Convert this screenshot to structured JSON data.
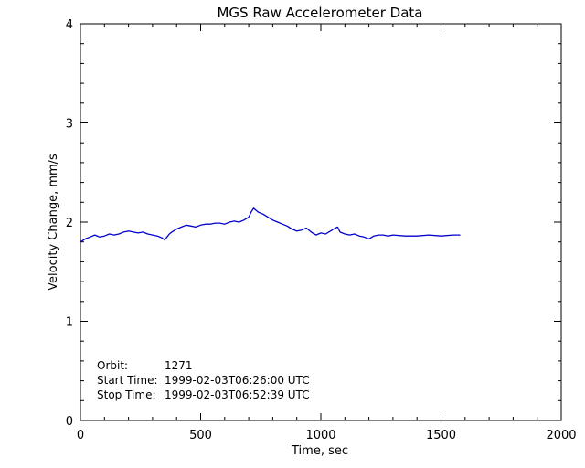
{
  "chart_data": {
    "type": "line",
    "title": "MGS Raw Accelerometer Data",
    "xlabel": "Time, sec",
    "ylabel": "Velocity Change, mm/s",
    "xlim": [
      0,
      2000
    ],
    "ylim": [
      0,
      4
    ],
    "xticks": [
      0,
      500,
      1000,
      1500,
      2000
    ],
    "xtick_labels": [
      "0",
      "500",
      "1000",
      "1500",
      "2000"
    ],
    "yticks": [
      0,
      1,
      2,
      3,
      4
    ],
    "ytick_labels": [
      "0",
      "1",
      "2",
      "3",
      "4"
    ],
    "grid": false,
    "line_color": "#0000cc",
    "series": [
      {
        "x": [
          0,
          20,
          40,
          60,
          80,
          100,
          120,
          140,
          160,
          180,
          200,
          220,
          240,
          260,
          280,
          300,
          320,
          340,
          350,
          360,
          370,
          380,
          400,
          420,
          440,
          460,
          480,
          500,
          520,
          540,
          560,
          580,
          600,
          620,
          640,
          660,
          680,
          700,
          710,
          720,
          730,
          740,
          760,
          780,
          800,
          820,
          840,
          860,
          880,
          900,
          920,
          940,
          960,
          980,
          1000,
          1020,
          1040,
          1060,
          1070,
          1080,
          1100,
          1120,
          1140,
          1160,
          1180,
          1200,
          1220,
          1240,
          1260,
          1280,
          1300,
          1350,
          1400,
          1450,
          1500,
          1550,
          1580
        ],
        "y": [
          1.8,
          1.83,
          1.85,
          1.87,
          1.85,
          1.86,
          1.88,
          1.87,
          1.88,
          1.9,
          1.91,
          1.9,
          1.89,
          1.9,
          1.88,
          1.87,
          1.86,
          1.84,
          1.82,
          1.85,
          1.88,
          1.9,
          1.93,
          1.95,
          1.97,
          1.96,
          1.95,
          1.97,
          1.98,
          1.98,
          1.99,
          1.99,
          1.98,
          2.0,
          2.01,
          2.0,
          2.02,
          2.05,
          2.1,
          2.14,
          2.12,
          2.1,
          2.08,
          2.05,
          2.02,
          2.0,
          1.98,
          1.96,
          1.93,
          1.91,
          1.92,
          1.94,
          1.9,
          1.87,
          1.89,
          1.88,
          1.91,
          1.94,
          1.95,
          1.9,
          1.88,
          1.87,
          1.88,
          1.86,
          1.85,
          1.83,
          1.86,
          1.87,
          1.87,
          1.86,
          1.87,
          1.86,
          1.86,
          1.87,
          1.86,
          1.87,
          1.87
        ]
      }
    ],
    "annotations": [
      {
        "label": "Orbit:",
        "value": "1271"
      },
      {
        "label": "Start Time:",
        "value": "1999-02-03T06:26:00 UTC"
      },
      {
        "label": "Stop Time:",
        "value": "1999-02-03T06:52:39 UTC"
      }
    ]
  }
}
